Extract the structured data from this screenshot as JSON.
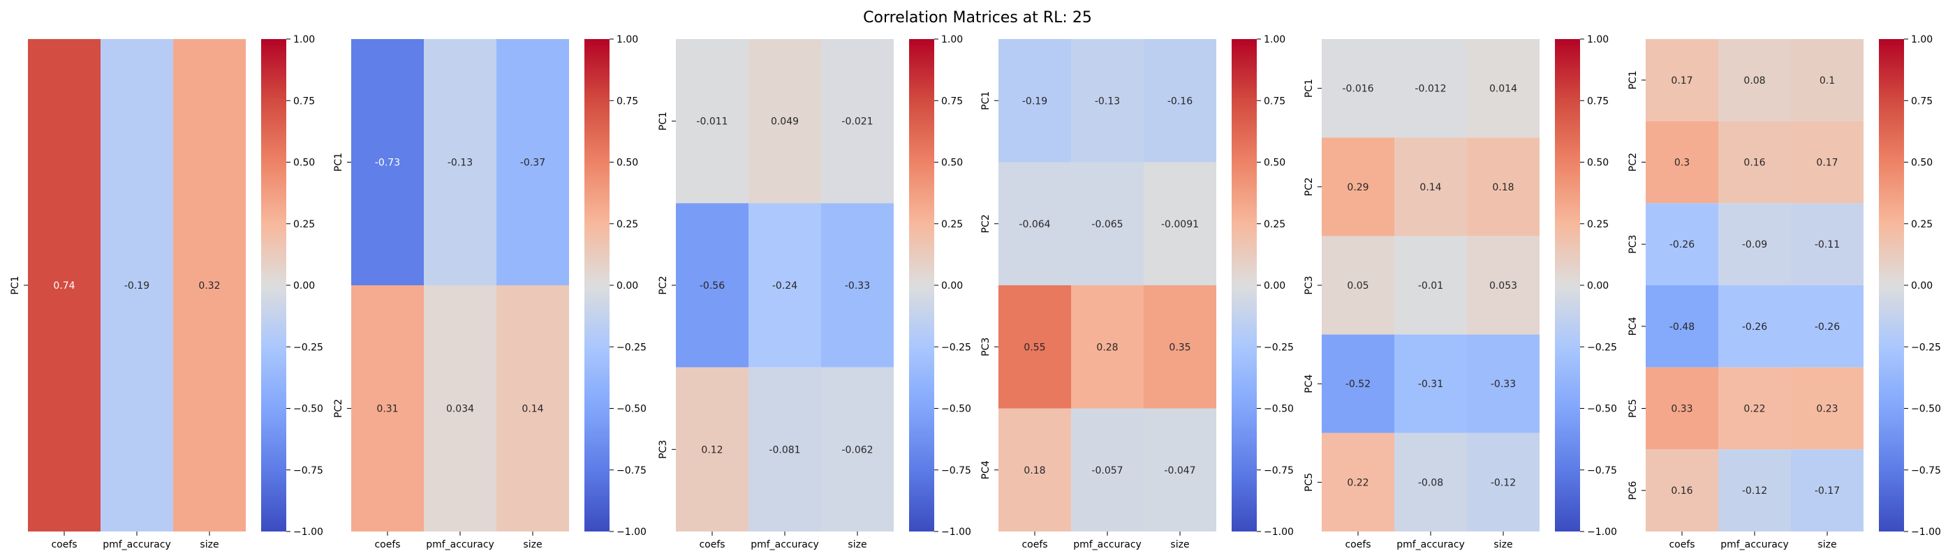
{
  "figure": {
    "title": "Correlation Matrices at RL: 25"
  },
  "colorbar": {
    "ticks": [
      1.0,
      0.75,
      0.5,
      0.25,
      0.0,
      -0.25,
      -0.5,
      -0.75,
      -1.0
    ],
    "tick_labels": [
      "1.00",
      "0.75",
      "0.50",
      "0.25",
      "0.00",
      "−0.25",
      "−0.50",
      "−0.75",
      "−1.00"
    ],
    "vmin": -1.0,
    "vmax": 1.0,
    "colormap": "coolwarm"
  },
  "chart_data": [
    {
      "type": "heatmap",
      "columns": [
        "coefs",
        "pmf_accuracy",
        "size"
      ],
      "rows": [
        "PC1"
      ],
      "values": [
        [
          0.74,
          -0.19,
          0.32
        ]
      ],
      "value_labels": [
        [
          "0.74",
          "-0.19",
          "0.32"
        ]
      ]
    },
    {
      "type": "heatmap",
      "columns": [
        "coefs",
        "pmf_accuracy",
        "size"
      ],
      "rows": [
        "PC1",
        "PC2"
      ],
      "values": [
        [
          -0.73,
          -0.13,
          -0.37
        ],
        [
          0.31,
          0.034,
          0.14
        ]
      ],
      "value_labels": [
        [
          "-0.73",
          "-0.13",
          "-0.37"
        ],
        [
          "0.31",
          "0.034",
          "0.14"
        ]
      ]
    },
    {
      "type": "heatmap",
      "columns": [
        "coefs",
        "pmf_accuracy",
        "size"
      ],
      "rows": [
        "PC1",
        "PC2",
        "PC3"
      ],
      "values": [
        [
          -0.011,
          0.049,
          -0.021
        ],
        [
          -0.56,
          -0.24,
          -0.33
        ],
        [
          0.12,
          -0.081,
          -0.062
        ]
      ],
      "value_labels": [
        [
          "-0.011",
          "0.049",
          "-0.021"
        ],
        [
          "-0.56",
          "-0.24",
          "-0.33"
        ],
        [
          "0.12",
          "-0.081",
          "-0.062"
        ]
      ]
    },
    {
      "type": "heatmap",
      "columns": [
        "coefs",
        "pmf_accuracy",
        "size"
      ],
      "rows": [
        "PC1",
        "PC2",
        "PC3",
        "PC4"
      ],
      "values": [
        [
          -0.19,
          -0.13,
          -0.16
        ],
        [
          -0.064,
          -0.065,
          -0.0091
        ],
        [
          0.55,
          0.28,
          0.35
        ],
        [
          0.18,
          -0.057,
          -0.047
        ]
      ],
      "value_labels": [
        [
          "-0.19",
          "-0.13",
          "-0.16"
        ],
        [
          "-0.064",
          "-0.065",
          "-0.0091"
        ],
        [
          "0.55",
          "0.28",
          "0.35"
        ],
        [
          "0.18",
          "-0.057",
          "-0.047"
        ]
      ]
    },
    {
      "type": "heatmap",
      "columns": [
        "coefs",
        "pmf_accuracy",
        "size"
      ],
      "rows": [
        "PC1",
        "PC2",
        "PC3",
        "PC4",
        "PC5"
      ],
      "values": [
        [
          -0.016,
          -0.012,
          0.014
        ],
        [
          0.29,
          0.14,
          0.18
        ],
        [
          0.05,
          -0.01,
          0.053
        ],
        [
          -0.52,
          -0.31,
          -0.33
        ],
        [
          0.22,
          -0.08,
          -0.12
        ]
      ],
      "value_labels": [
        [
          "-0.016",
          "-0.012",
          "0.014"
        ],
        [
          "0.29",
          "0.14",
          "0.18"
        ],
        [
          "0.05",
          "-0.01",
          "0.053"
        ],
        [
          "-0.52",
          "-0.31",
          "-0.33"
        ],
        [
          "0.22",
          "-0.08",
          "-0.12"
        ]
      ]
    },
    {
      "type": "heatmap",
      "columns": [
        "coefs",
        "pmf_accuracy",
        "size"
      ],
      "rows": [
        "PC1",
        "PC2",
        "PC3",
        "PC4",
        "PC5",
        "PC6"
      ],
      "values": [
        [
          0.17,
          0.08,
          0.1
        ],
        [
          0.3,
          0.16,
          0.17
        ],
        [
          -0.26,
          -0.09,
          -0.11
        ],
        [
          -0.48,
          -0.26,
          -0.26
        ],
        [
          0.33,
          0.22,
          0.23
        ],
        [
          0.16,
          -0.12,
          -0.17
        ]
      ],
      "value_labels": [
        [
          "0.17",
          "0.08",
          "0.1"
        ],
        [
          "0.3",
          "0.16",
          "0.17"
        ],
        [
          "-0.26",
          "-0.09",
          "-0.11"
        ],
        [
          "-0.48",
          "-0.26",
          "-0.26"
        ],
        [
          "0.33",
          "0.22",
          "0.23"
        ],
        [
          "0.16",
          "-0.12",
          "-0.17"
        ]
      ]
    }
  ]
}
